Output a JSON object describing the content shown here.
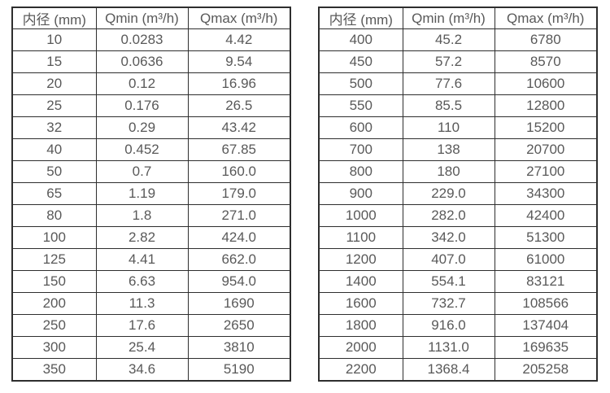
{
  "page": {
    "background_color": "#ffffff",
    "border_color": "#2e2e2e",
    "text_color": "#595959"
  },
  "tables": [
    {
      "name": "flow-range-table-small-diameters",
      "headers": [
        "内径 (mm)",
        "Qmin (m³/h)",
        "Qmax (m³/h)"
      ],
      "rows": [
        [
          "10",
          "0.0283",
          "4.42"
        ],
        [
          "15",
          "0.0636",
          "9.54"
        ],
        [
          "20",
          "0.12",
          "16.96"
        ],
        [
          "25",
          "0.176",
          "26.5"
        ],
        [
          "32",
          "0.29",
          "43.42"
        ],
        [
          "40",
          "0.452",
          "67.85"
        ],
        [
          "50",
          "0.7",
          "160.0"
        ],
        [
          "65",
          "1.19",
          "179.0"
        ],
        [
          "80",
          "1.8",
          "271.0"
        ],
        [
          "100",
          "2.82",
          "424.0"
        ],
        [
          "125",
          "4.41",
          "662.0"
        ],
        [
          "150",
          "6.63",
          "954.0"
        ],
        [
          "200",
          "11.3",
          "1690"
        ],
        [
          "250",
          "17.6",
          "2650"
        ],
        [
          "300",
          "25.4",
          "3810"
        ],
        [
          "350",
          "34.6",
          "5190"
        ]
      ]
    },
    {
      "name": "flow-range-table-large-diameters",
      "headers": [
        "内径 (mm)",
        "Qmin (m³/h)",
        "Qmax (m³/h)"
      ],
      "rows": [
        [
          "400",
          "45.2",
          "6780"
        ],
        [
          "450",
          "57.2",
          "8570"
        ],
        [
          "500",
          "77.6",
          "10600"
        ],
        [
          "550",
          "85.5",
          "12800"
        ],
        [
          "600",
          "110",
          "15200"
        ],
        [
          "700",
          "138",
          "20700"
        ],
        [
          "800",
          "180",
          "27100"
        ],
        [
          "900",
          "229.0",
          "34300"
        ],
        [
          "1000",
          "282.0",
          "42400"
        ],
        [
          "1100",
          "342.0",
          "51300"
        ],
        [
          "1200",
          "407.0",
          "61000"
        ],
        [
          "1400",
          "554.1",
          "83121"
        ],
        [
          "1600",
          "732.7",
          "108566"
        ],
        [
          "1800",
          "916.0",
          "137404"
        ],
        [
          "2000",
          "1131.0",
          "169635"
        ],
        [
          "2200",
          "1368.4",
          "205258"
        ]
      ]
    }
  ]
}
